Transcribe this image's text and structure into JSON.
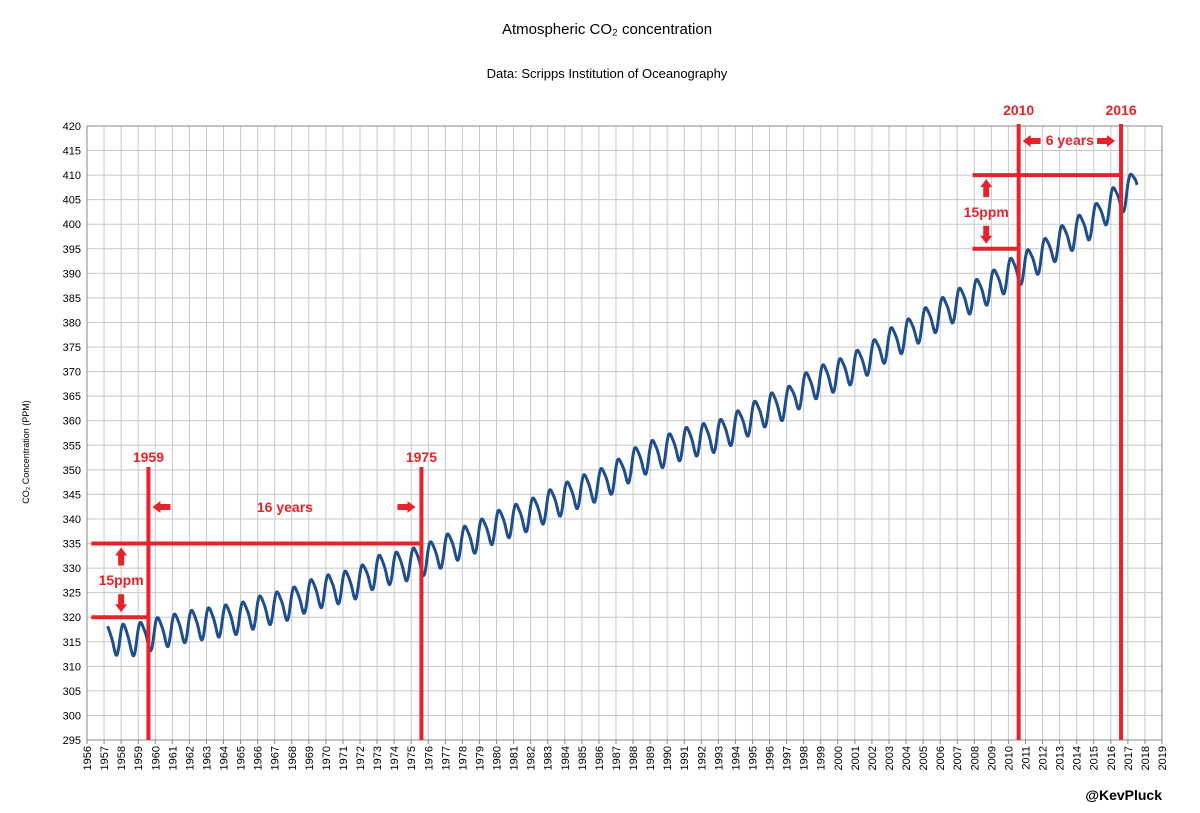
{
  "chart_data": {
    "type": "line",
    "title": "Atmospheric CO₂ concentration",
    "subtitle": "Data: Scripps Institution of Oceanography",
    "xlabel": "",
    "ylabel": "CO₂ Concentration (PPM)",
    "xlim": [
      1956,
      2019
    ],
    "ylim": [
      295,
      420
    ],
    "ytick_step": 5,
    "xtick_step": 1,
    "grid": true,
    "legend": "none",
    "credit": "@KevPluck",
    "colors": {
      "series": "#1f4e8c",
      "annotation": "#e8222a",
      "grid": "#c8c8c8"
    },
    "series": [
      {
        "x": [
          1957.5,
          1958.0,
          1958.5,
          1959.0,
          1959.5,
          1960.0,
          1961.0,
          1962.0,
          1963.0,
          1964.0,
          1965.0,
          1966.0,
          1967.0,
          1968.0,
          1969.0,
          1970.0,
          1971.0,
          1972.0,
          1973.0,
          1974.0,
          1975.0,
          1976.0,
          1977.0,
          1978.0,
          1979.0,
          1980.0,
          1981.0,
          1982.0,
          1983.0,
          1984.0,
          1985.0,
          1986.0,
          1987.0,
          1988.0,
          1989.0,
          1990.0,
          1991.0,
          1992.0,
          1993.0,
          1994.0,
          1995.0,
          1996.0,
          1997.0,
          1998.0,
          1999.0,
          2000.0,
          2001.0,
          2002.0,
          2003.0,
          2004.0,
          2005.0,
          2006.0,
          2007.0,
          2008.0,
          2009.0,
          2010.0,
          2011.0,
          2012.0,
          2013.0,
          2014.0,
          2015.0,
          2016.0,
          2017.0,
          2017.5
        ],
        "y": [
          315.5,
          315.8,
          315.2,
          315.9,
          316.3,
          316.9,
          317.6,
          318.4,
          318.9,
          319.5,
          320.0,
          321.3,
          322.1,
          323.0,
          324.6,
          325.6,
          326.3,
          327.4,
          329.6,
          330.2,
          331.0,
          332.2,
          333.8,
          335.4,
          336.8,
          338.7,
          339.9,
          341.1,
          342.8,
          344.4,
          345.9,
          347.1,
          348.9,
          351.4,
          352.9,
          354.2,
          355.6,
          356.4,
          357.1,
          358.8,
          360.8,
          362.6,
          363.7,
          366.6,
          368.3,
          369.5,
          371.1,
          373.2,
          375.8,
          377.5,
          379.8,
          381.9,
          383.8,
          385.6,
          387.4,
          389.9,
          391.6,
          393.8,
          396.5,
          398.6,
          400.8,
          404.2,
          406.5,
          409.0
        ],
        "seasonal_amplitude": 3.0
      }
    ],
    "annotations": {
      "left": {
        "start_year_label": "1959",
        "end_year_label": "1975",
        "span_label": "16 years",
        "delta_label": "15ppm",
        "start_year": 1959.6,
        "end_year": 1975.6,
        "low_ppm": 320,
        "high_ppm": 335
      },
      "right": {
        "start_year_label": "2010",
        "end_year_label": "2016",
        "span_label": "6 years",
        "delta_label": "15ppm",
        "start_year": 2010.6,
        "end_year": 2016.6,
        "low_ppm": 395,
        "high_ppm": 410
      }
    }
  }
}
